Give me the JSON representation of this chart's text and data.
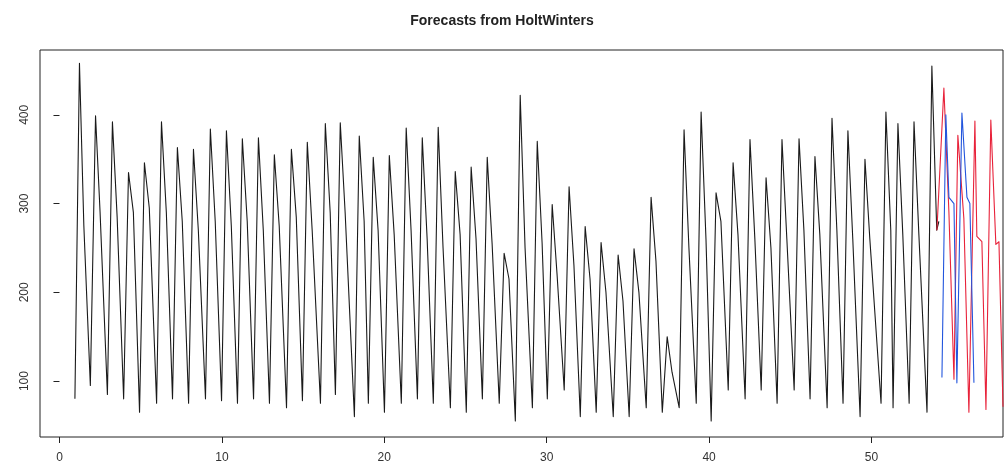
{
  "chart_data": {
    "type": "line",
    "title": "Forecasts from HoltWinters",
    "xlim": [
      -1.2,
      58.1
    ],
    "xticks": [
      0,
      10,
      20,
      30,
      40,
      50
    ],
    "ylim": [
      37,
      473
    ],
    "yticks": [
      100,
      200,
      300,
      400
    ],
    "grid": false,
    "series": [
      {
        "color": "#1a1a1a",
        "x": [
          0.95,
          1.23,
          1.5,
          1.9,
          2.22,
          2.5,
          2.95,
          3.26,
          3.55,
          3.95,
          4.25,
          4.55,
          4.93,
          5.23,
          5.53,
          5.98,
          6.28,
          6.58,
          6.96,
          7.26,
          7.56,
          7.95,
          8.25,
          8.55,
          8.99,
          9.29,
          9.59,
          9.98,
          10.28,
          10.58,
          10.96,
          11.26,
          11.56,
          11.95,
          12.25,
          12.55,
          12.93,
          13.23,
          13.53,
          13.98,
          14.28,
          14.58,
          14.96,
          15.26,
          15.56,
          16.07,
          16.37,
          16.67,
          16.99,
          17.29,
          17.59,
          18.16,
          18.46,
          18.76,
          19.02,
          19.32,
          19.62,
          20.01,
          20.31,
          20.61,
          21.05,
          21.35,
          21.65,
          22.04,
          22.34,
          22.64,
          23.02,
          23.32,
          23.62,
          24.07,
          24.37,
          24.67,
          25.05,
          25.35,
          25.65,
          26.04,
          26.34,
          26.64,
          27.08,
          27.38,
          27.68,
          28.07,
          28.37,
          28.67,
          29.12,
          29.42,
          29.72,
          30.04,
          30.34,
          30.64,
          31.08,
          31.38,
          31.68,
          32.07,
          32.37,
          32.67,
          33.05,
          33.35,
          33.65,
          34.1,
          34.4,
          34.7,
          35.08,
          35.38,
          35.68,
          36.13,
          36.43,
          36.73,
          37.12,
          37.42,
          37.72,
          38.16,
          38.46,
          38.76,
          39.21,
          39.51,
          39.81,
          40.13,
          40.43,
          40.73,
          41.18,
          41.48,
          41.78,
          42.22,
          42.52,
          42.82,
          43.21,
          43.51,
          43.81,
          44.19,
          44.49,
          44.79,
          45.24,
          45.54,
          45.84,
          46.22,
          46.52,
          46.82,
          47.27,
          47.57,
          47.87,
          48.25,
          48.55,
          48.85,
          49.3,
          49.6,
          49.9,
          50.59,
          50.89,
          51.19,
          51.33,
          51.63,
          51.93,
          52.32,
          52.62,
          52.92,
          53.42,
          53.72,
          54.02,
          54.15
        ],
        "values": [
          80,
          458,
          275,
          95,
          399,
          290,
          85,
          392,
          285,
          80,
          335,
          290,
          65,
          346,
          295,
          75,
          392,
          290,
          80,
          363,
          280,
          75,
          361,
          270,
          80,
          384,
          280,
          78,
          382,
          275,
          75,
          373,
          280,
          80,
          374,
          270,
          75,
          355,
          275,
          70,
          361,
          285,
          78,
          369,
          270,
          75,
          390,
          290,
          85,
          391,
          290,
          60,
          376,
          280,
          75,
          352,
          270,
          65,
          354,
          265,
          75,
          385,
          270,
          80,
          374,
          260,
          75,
          386,
          250,
          70,
          336,
          265,
          65,
          341,
          260,
          80,
          352,
          255,
          75,
          244,
          215,
          55,
          422,
          250,
          70,
          370,
          255,
          80,
          299,
          220,
          90,
          319,
          230,
          60,
          274,
          215,
          65,
          256,
          200,
          60,
          242,
          190,
          60,
          249,
          200,
          70,
          307,
          235,
          65,
          150,
          110,
          70,
          383,
          250,
          75,
          403,
          260,
          55,
          312,
          280,
          90,
          346,
          265,
          80,
          372,
          260,
          90,
          329,
          250,
          75,
          372,
          260,
          90,
          373,
          270,
          80,
          353,
          265,
          70,
          396,
          270,
          75,
          382,
          260,
          60,
          350,
          260,
          75,
          403,
          270,
          70,
          390,
          265,
          75,
          392,
          265,
          65,
          455,
          270,
          280
        ]
      },
      {
        "color": "#e8223a",
        "x": [
          54.03,
          54.46,
          54.77,
          55.08,
          55.32,
          55.69,
          56.0,
          56.37,
          56.49,
          56.8,
          57.05,
          57.35,
          57.66,
          57.85,
          58.1
        ],
        "values": [
          270,
          430,
          290,
          102,
          377,
          283,
          65,
          393,
          263,
          257,
          68,
          394,
          254,
          257,
          71
        ]
      },
      {
        "color": "#2255dd",
        "x": [
          54.34,
          54.58,
          54.77,
          55.08,
          55.26,
          55.57,
          55.88,
          56.06,
          56.31
        ],
        "values": [
          104,
          400,
          307,
          300,
          98,
          402,
          307,
          300,
          98
        ]
      }
    ]
  }
}
